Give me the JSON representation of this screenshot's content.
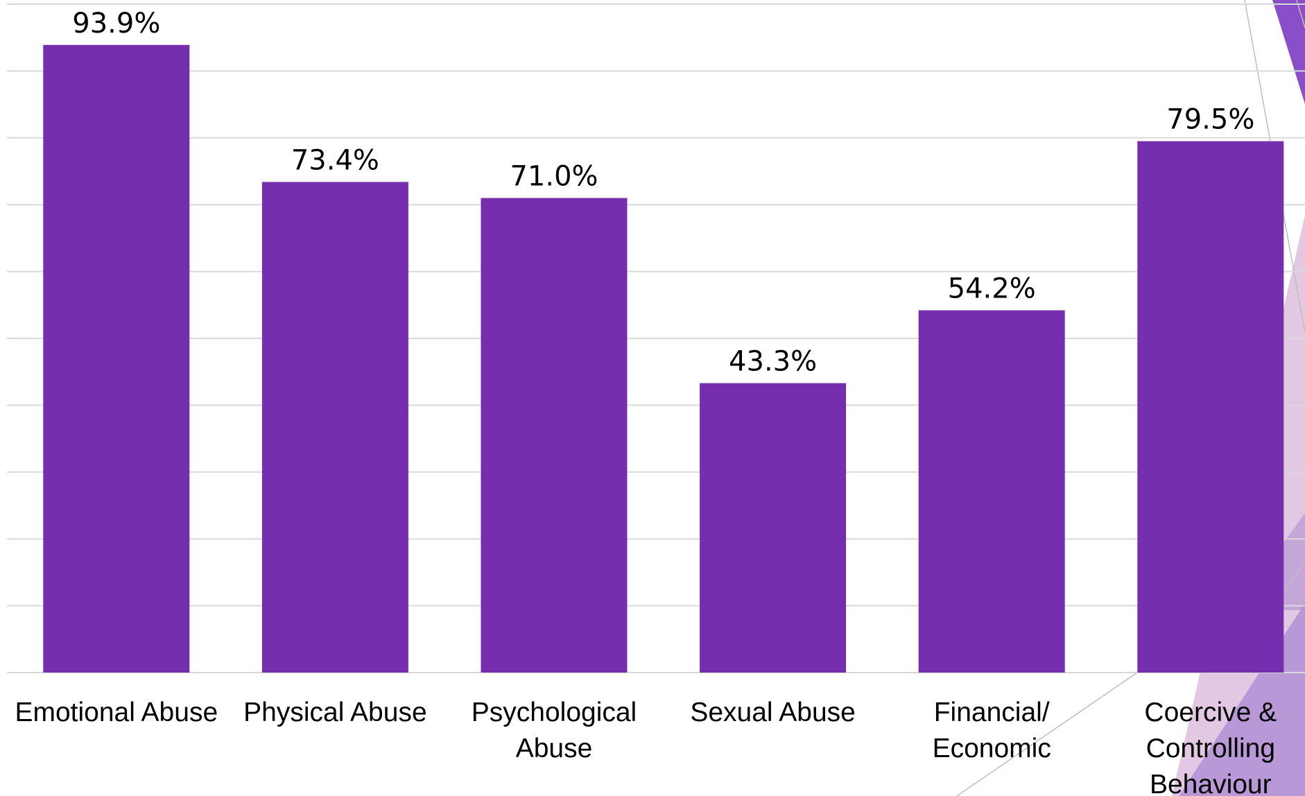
{
  "colors": {
    "bar": "#742eae",
    "grid": "#d9d9d9",
    "background": "#ffffff",
    "accent_light": "#e2c8e2",
    "accent_mid": "#b08fd4",
    "accent_dark": "#8a4fc8"
  },
  "chart_data": {
    "type": "bar",
    "categories": [
      [
        "Emotional Abuse"
      ],
      [
        "Physical Abuse"
      ],
      [
        "Psychological",
        "Abuse"
      ],
      [
        "Sexual Abuse"
      ],
      [
        "Financial/",
        "Economic"
      ],
      [
        "Coercive &",
        "Controlling",
        "Behaviour"
      ]
    ],
    "values": [
      93.9,
      73.4,
      71.0,
      43.3,
      54.2,
      79.5
    ],
    "value_labels": [
      "93.9%",
      "73.4%",
      "71.0%",
      "43.3%",
      "54.2%",
      "79.5%"
    ],
    "ylim": [
      0,
      100
    ],
    "y_gridline_step": 10,
    "grid": true,
    "legend": "none",
    "title": "",
    "xlabel": "",
    "ylabel": ""
  }
}
